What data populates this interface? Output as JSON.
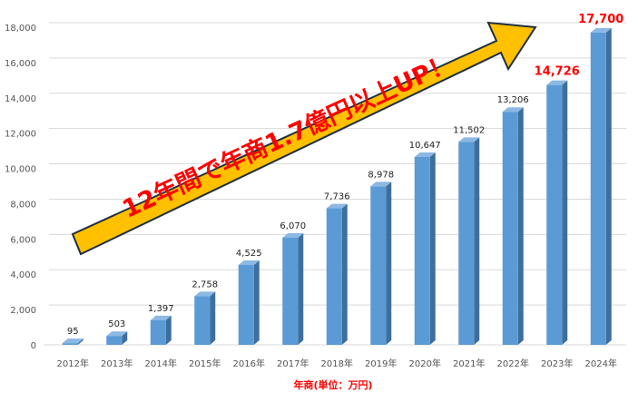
{
  "chart_data": {
    "type": "bar",
    "categories": [
      "2012年",
      "2013年",
      "2014年",
      "2015年",
      "2016年",
      "2017年",
      "2018年",
      "2019年",
      "2020年",
      "2021年",
      "2022年",
      "2023年",
      "2024年"
    ],
    "values": [
      95,
      503,
      1397,
      2758,
      4525,
      6070,
      7736,
      8978,
      10647,
      11502,
      13206,
      14726,
      17700
    ],
    "value_labels": [
      "95",
      "503",
      "1,397",
      "2,758",
      "4,525",
      "6,070",
      "7,736",
      "8,978",
      "10,647",
      "11,502",
      "13,206",
      "14,726",
      "17,700"
    ],
    "highlighted_labels": [
      "2023年",
      "2024年"
    ],
    "xlabel": "年商(単位：万円)",
    "ylabel": "",
    "ylim": [
      0,
      18000
    ],
    "yticks": [
      0,
      2000,
      4000,
      6000,
      8000,
      10000,
      12000,
      14000,
      16000,
      18000
    ],
    "ytick_labels": [
      "0",
      "2,000",
      "4,000",
      "6,000",
      "8,000",
      "10,000",
      "12,000",
      "14,000",
      "16,000",
      "18,000"
    ],
    "grid": true,
    "annotation": "12年間で年商1.7億円以上UP！"
  },
  "colors": {
    "bar_front": "#5b9bd5",
    "bar_side": "#3d6f9e",
    "bar_top": "#8db8e3",
    "grid": "#d9d9d9",
    "arrow_fill": "#ffc000",
    "arrow_stroke": "#1f2f3f",
    "highlight_text": "#ff0000"
  }
}
